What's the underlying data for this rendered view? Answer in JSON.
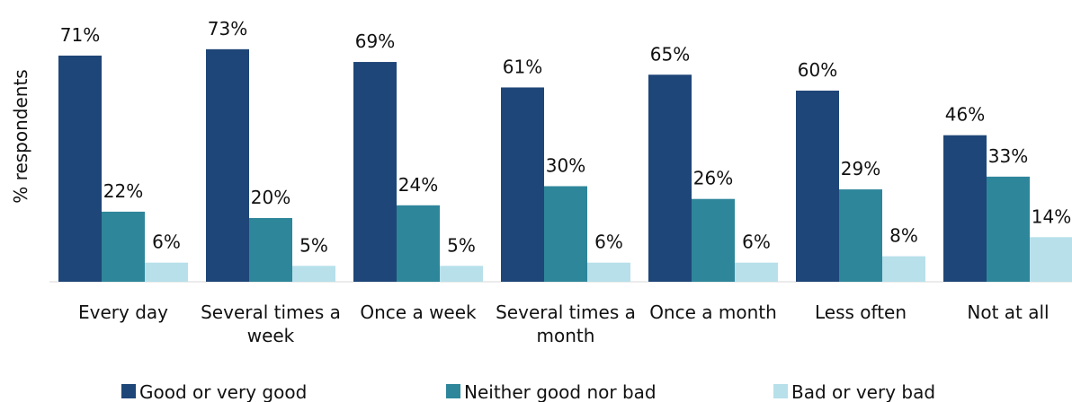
{
  "chart_data": {
    "type": "bar",
    "ylabel": "% respondents",
    "ylim": [
      0,
      78
    ],
    "grid": false,
    "legend_position": "bottom",
    "categories": [
      [
        "Every day"
      ],
      [
        "Several times a",
        "week"
      ],
      [
        "Once a week"
      ],
      [
        "Several times a",
        "month"
      ],
      [
        "Once a month"
      ],
      [
        "Less often"
      ],
      [
        "Not at all"
      ]
    ],
    "series": [
      {
        "name": "Good or very good",
        "color": "#1f4678",
        "values": [
          71,
          73,
          69,
          61,
          65,
          60,
          46
        ],
        "labels": [
          "71%",
          "73%",
          "69%",
          "61%",
          "65%",
          "60%",
          "46%"
        ]
      },
      {
        "name": "Neither good nor bad",
        "color": "#2e869a",
        "values": [
          22,
          20,
          24,
          30,
          26,
          29,
          33
        ],
        "labels": [
          "22%",
          "20%",
          "24%",
          "30%",
          "26%",
          "29%",
          "33%"
        ]
      },
      {
        "name": "Bad or very bad",
        "color": "#b7e0ea",
        "values": [
          6,
          5,
          5,
          6,
          6,
          8,
          14
        ],
        "labels": [
          "6%",
          "5%",
          "5%",
          "6%",
          "6%",
          "8%",
          "14%"
        ]
      }
    ]
  }
}
